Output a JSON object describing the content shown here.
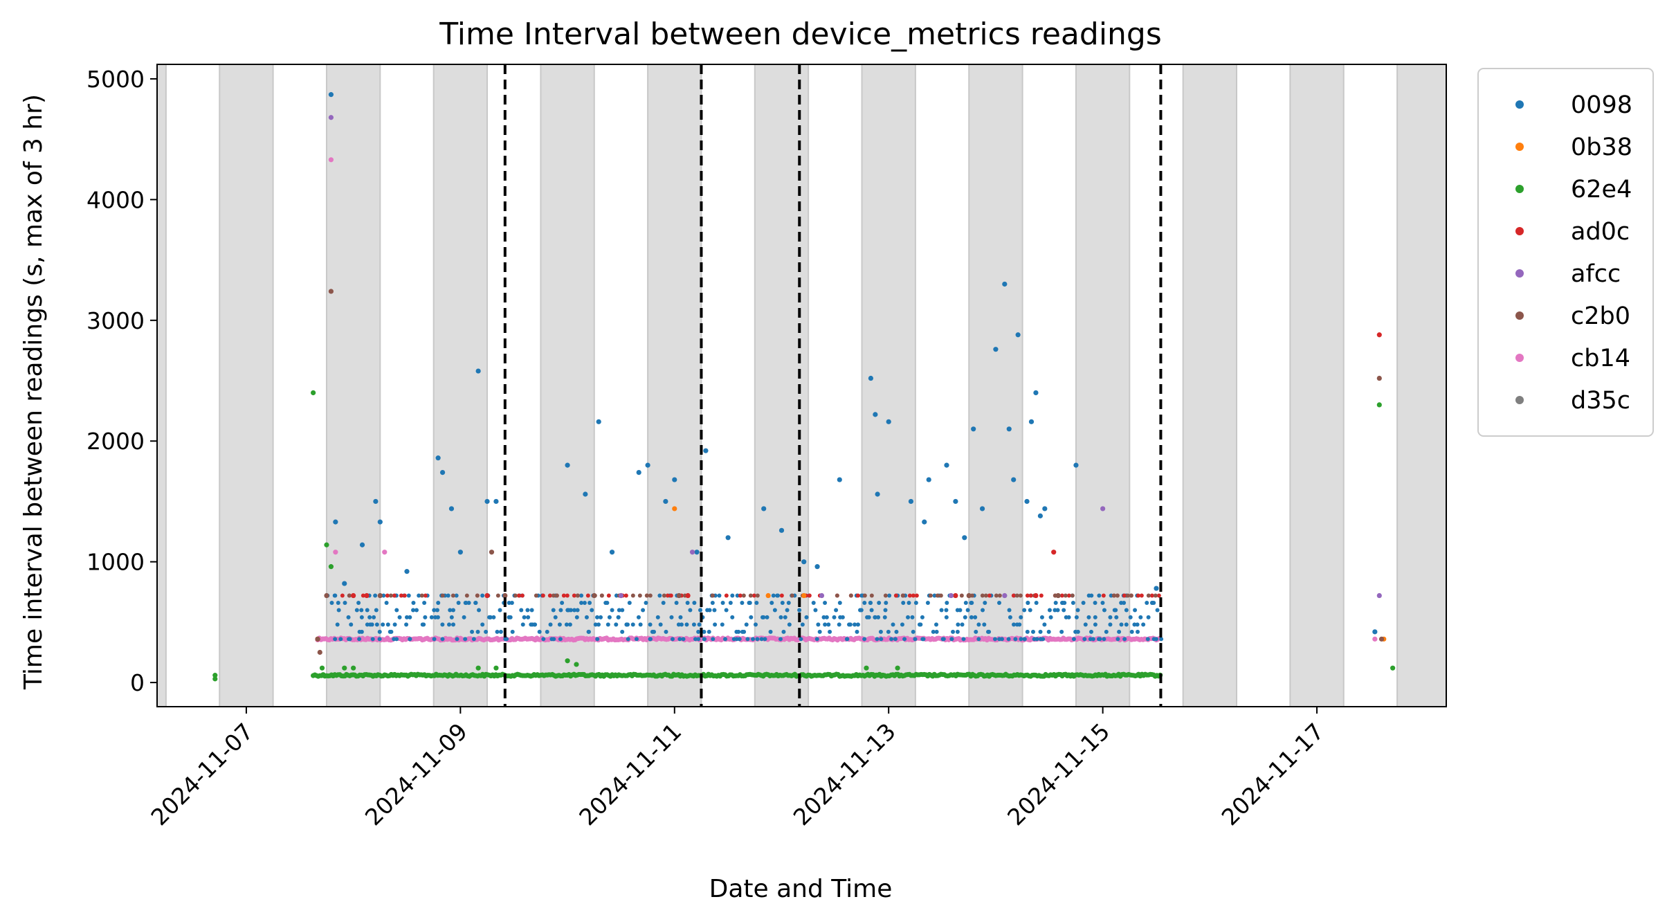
{
  "chart_data": {
    "type": "scatter",
    "title": "Time Interval between device_metrics readings",
    "xlabel": "Date and Time",
    "ylabel": "Time interval between readings (s, max of 3 hr)",
    "x_range": [
      "2024-11-06 04:00",
      "2024-11-18 05:00"
    ],
    "x_ticks": [
      "2024-11-07",
      "2024-11-09",
      "2024-11-11",
      "2024-11-13",
      "2024-11-15",
      "2024-11-17"
    ],
    "ylim": [
      -200,
      5120
    ],
    "y_ticks": [
      0,
      1000,
      2000,
      3000,
      4000,
      5000
    ],
    "grid": false,
    "legend_position": "outside-right",
    "night_bands": [
      [
        "2024-11-06 04:00",
        "2024-11-06 06:00"
      ],
      [
        "2024-11-06 18:00",
        "2024-11-07 06:00"
      ],
      [
        "2024-11-07 18:00",
        "2024-11-08 06:00"
      ],
      [
        "2024-11-08 18:00",
        "2024-11-09 06:00"
      ],
      [
        "2024-11-09 18:00",
        "2024-11-10 06:00"
      ],
      [
        "2024-11-10 18:00",
        "2024-11-11 06:00"
      ],
      [
        "2024-11-11 18:00",
        "2024-11-12 06:00"
      ],
      [
        "2024-11-12 18:00",
        "2024-11-13 06:00"
      ],
      [
        "2024-11-13 18:00",
        "2024-11-14 06:00"
      ],
      [
        "2024-11-14 18:00",
        "2024-11-15 06:00"
      ],
      [
        "2024-11-15 18:00",
        "2024-11-16 06:00"
      ],
      [
        "2024-11-16 18:00",
        "2024-11-17 06:00"
      ],
      [
        "2024-11-17 18:00",
        "2024-11-18 05:00"
      ]
    ],
    "vertical_lines": [
      "2024-11-09 10:00",
      "2024-11-11 06:00",
      "2024-11-12 04:00",
      "2024-11-15 13:00"
    ],
    "series": [
      {
        "name": "0098",
        "color": "#1f77b4",
        "points": [
          [
            "2024-11-07 19:00",
            4870
          ],
          [
            "2024-11-07 20:00",
            1330
          ],
          [
            "2024-11-07 22:00",
            820
          ],
          [
            "2024-11-08 02:00",
            1140
          ],
          [
            "2024-11-08 05:00",
            1500
          ],
          [
            "2024-11-08 06:00",
            1330
          ],
          [
            "2024-11-08 12:00",
            920
          ],
          [
            "2024-11-08 19:00",
            1860
          ],
          [
            "2024-11-08 20:00",
            1740
          ],
          [
            "2024-11-08 22:00",
            1440
          ],
          [
            "2024-11-09 00:00",
            1080
          ],
          [
            "2024-11-09 04:00",
            2580
          ],
          [
            "2024-11-09 06:00",
            1500
          ],
          [
            "2024-11-09 08:00",
            1500
          ],
          [
            "2024-11-10 00:00",
            1800
          ],
          [
            "2024-11-10 04:00",
            1560
          ],
          [
            "2024-11-10 07:00",
            2160
          ],
          [
            "2024-11-10 10:00",
            1080
          ],
          [
            "2024-11-10 16:00",
            1740
          ],
          [
            "2024-11-10 18:00",
            1800
          ],
          [
            "2024-11-10 22:00",
            1500
          ],
          [
            "2024-11-11 00:00",
            1680
          ],
          [
            "2024-11-11 05:00",
            1080
          ],
          [
            "2024-11-11 07:00",
            1920
          ],
          [
            "2024-11-11 12:00",
            1200
          ],
          [
            "2024-11-11 20:00",
            1440
          ],
          [
            "2024-11-12 00:00",
            1260
          ],
          [
            "2024-11-12 05:00",
            1000
          ],
          [
            "2024-11-12 08:00",
            960
          ],
          [
            "2024-11-12 13:00",
            1680
          ],
          [
            "2024-11-12 20:00",
            2520
          ],
          [
            "2024-11-12 21:00",
            2220
          ],
          [
            "2024-11-12 21:30",
            1560
          ],
          [
            "2024-11-13 00:00",
            2160
          ],
          [
            "2024-11-13 05:00",
            1500
          ],
          [
            "2024-11-13 08:00",
            1330
          ],
          [
            "2024-11-13 09:00",
            1680
          ],
          [
            "2024-11-13 13:00",
            1800
          ],
          [
            "2024-11-13 15:00",
            1500
          ],
          [
            "2024-11-13 17:00",
            1200
          ],
          [
            "2024-11-13 19:00",
            2100
          ],
          [
            "2024-11-13 21:00",
            1440
          ],
          [
            "2024-11-14 00:00",
            2760
          ],
          [
            "2024-11-14 02:00",
            3300
          ],
          [
            "2024-11-14 03:00",
            2100
          ],
          [
            "2024-11-14 04:00",
            1680
          ],
          [
            "2024-11-14 05:00",
            2880
          ],
          [
            "2024-11-14 07:00",
            1500
          ],
          [
            "2024-11-14 08:00",
            2160
          ],
          [
            "2024-11-14 09:00",
            2400
          ],
          [
            "2024-11-14 10:00",
            1380
          ],
          [
            "2024-11-14 11:00",
            1440
          ],
          [
            "2024-11-14 18:00",
            1800
          ],
          [
            "2024-11-15 12:00",
            780
          ],
          [
            "2024-11-17 13:00",
            420
          ]
        ]
      },
      {
        "name": "0b38",
        "color": "#ff7f0e",
        "points": [
          [
            "2024-11-07 16:00",
            360
          ],
          [
            "2024-11-11 00:00",
            1440
          ],
          [
            "2024-11-11 21:00",
            720
          ],
          [
            "2024-11-12 05:00",
            720
          ],
          [
            "2024-11-17 15:00",
            360
          ]
        ]
      },
      {
        "name": "62e4",
        "color": "#2ca02c",
        "points": [
          [
            "2024-11-06 17:00",
            60
          ],
          [
            "2024-11-06 17:00",
            30
          ],
          [
            "2024-11-07 15:00",
            2400
          ],
          [
            "2024-11-07 17:00",
            120
          ],
          [
            "2024-11-07 18:00",
            1140
          ],
          [
            "2024-11-07 19:00",
            960
          ],
          [
            "2024-11-07 22:00",
            120
          ],
          [
            "2024-11-08 00:00",
            120
          ],
          [
            "2024-11-09 04:00",
            120
          ],
          [
            "2024-11-09 08:00",
            120
          ],
          [
            "2024-11-10 00:00",
            180
          ],
          [
            "2024-11-10 02:00",
            150
          ],
          [
            "2024-11-12 19:00",
            120
          ],
          [
            "2024-11-13 02:00",
            120
          ],
          [
            "2024-11-17 14:00",
            2300
          ],
          [
            "2024-11-17 17:00",
            120
          ]
        ]
      },
      {
        "name": "ad0c",
        "color": "#d62728",
        "points": [
          [
            "2024-11-07 16:00",
            360
          ],
          [
            "2024-11-08 00:00",
            720
          ],
          [
            "2024-11-08 03:00",
            720
          ],
          [
            "2024-11-09 06:00",
            720
          ],
          [
            "2024-11-10 12:00",
            720
          ],
          [
            "2024-11-11 03:00",
            720
          ],
          [
            "2024-11-13 15:00",
            720
          ],
          [
            "2024-11-14 09:00",
            720
          ],
          [
            "2024-11-14 13:00",
            1080
          ],
          [
            "2024-11-17 14:00",
            2880
          ]
        ]
      },
      {
        "name": "afcc",
        "color": "#9467bd",
        "points": [
          [
            "2024-11-07 19:00",
            4680
          ],
          [
            "2024-11-10 12:00",
            720
          ],
          [
            "2024-11-11 04:00",
            1080
          ],
          [
            "2024-11-12 09:00",
            720
          ],
          [
            "2024-11-13 14:00",
            720
          ],
          [
            "2024-11-14 02:00",
            720
          ],
          [
            "2024-11-15 00:00",
            1440
          ],
          [
            "2024-11-17 14:00",
            720
          ]
        ]
      },
      {
        "name": "c2b0",
        "color": "#8c564b",
        "points": [
          [
            "2024-11-07 16:00",
            360
          ],
          [
            "2024-11-07 16:30",
            250
          ],
          [
            "2024-11-07 19:00",
            3240
          ],
          [
            "2024-11-07 18:00",
            720
          ],
          [
            "2024-11-08 06:00",
            720
          ],
          [
            "2024-11-09 07:00",
            1080
          ],
          [
            "2024-11-09 10:00",
            720
          ],
          [
            "2024-11-10 06:00",
            720
          ],
          [
            "2024-11-11 01:00",
            720
          ],
          [
            "2024-11-13 18:00",
            720
          ],
          [
            "2024-11-14 14:00",
            720
          ],
          [
            "2024-11-17 14:00",
            2520
          ],
          [
            "2024-11-17 14:30",
            360
          ]
        ]
      },
      {
        "name": "cb14",
        "color": "#e377c2",
        "points": [
          [
            "2024-11-07 19:00",
            4330
          ],
          [
            "2024-11-07 20:00",
            1080
          ],
          [
            "2024-11-08 07:00",
            1080
          ],
          [
            "2024-11-17 13:00",
            360
          ]
        ]
      },
      {
        "name": "d35c",
        "color": "#7f7f7f",
        "points": []
      }
    ],
    "dense_bands": [
      {
        "series": "62e4",
        "from": "2024-11-07 15:00",
        "to": "2024-11-15 13:00",
        "y": 60
      },
      {
        "series": "cb14",
        "from": "2024-11-07 16:00",
        "to": "2024-11-15 13:00",
        "y": 360
      },
      {
        "series": "0098",
        "from": "2024-11-07 18:00",
        "to": "2024-11-15 13:00",
        "y_values": [
          360,
          420,
          480,
          540,
          600,
          660,
          720
        ],
        "note": "dense 0098 readings"
      },
      {
        "series": "ad0c",
        "from": "2024-11-07 20:00",
        "to": "2024-11-15 13:00",
        "y": 720,
        "sparse": true
      },
      {
        "series": "c2b0",
        "from": "2024-11-07 20:00",
        "to": "2024-11-15 13:00",
        "y": 720,
        "sparse": true
      }
    ]
  }
}
